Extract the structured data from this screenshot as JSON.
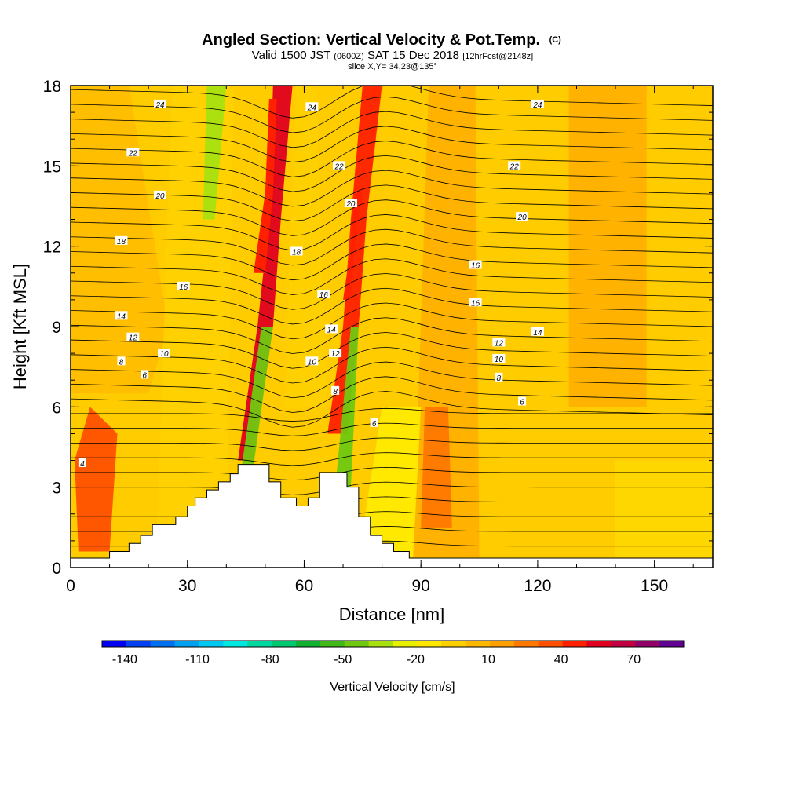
{
  "title": {
    "main": "Angled Section: Vertical Velocity & Pot.Temp.",
    "main_unit": "(C)",
    "valid_prefix": "Valid 1500 JST",
    "valid_zulu": "(0600Z)",
    "valid_date": "SAT 15 Dec 2018",
    "forecast": "[12hrFcst@2148z]",
    "slice": "slice X,Y= 34,23@135°"
  },
  "colorbar": {
    "label": "Vertical Velocity [cm/s]",
    "tick_labels": [
      "-140",
      "-110",
      "-80",
      "-50",
      "-20",
      "10",
      "40",
      "70"
    ],
    "tick_values": [
      -140,
      -110,
      -80,
      -50,
      -20,
      10,
      40,
      70
    ],
    "min": -150,
    "max": 90,
    "step": 10,
    "colors": [
      "#0000f0",
      "#0040f0",
      "#0070f0",
      "#00a0f0",
      "#00c8f0",
      "#00e8e0",
      "#00d8a0",
      "#00c870",
      "#10b030",
      "#40b818",
      "#70c810",
      "#a8e010",
      "#e8f000",
      "#ffe800",
      "#ffd000",
      "#ffb800",
      "#ffa000",
      "#ff7800",
      "#ff5000",
      "#ff2000",
      "#e00020",
      "#c00040",
      "#900068",
      "#600090"
    ]
  },
  "chart_data": {
    "type": "heatmap",
    "subtype": "vertical cross-section with contour overlay",
    "x": {
      "label": "Distance [nm]",
      "range": [
        0,
        165
      ],
      "ticks": [
        0,
        30,
        60,
        90,
        120,
        150
      ]
    },
    "y": {
      "label": "Height [Kft MSL]",
      "range": [
        0,
        18
      ],
      "ticks": [
        0,
        3,
        6,
        9,
        12,
        15,
        18
      ]
    },
    "filled_field": {
      "name": "Vertical Velocity",
      "units": "cm/s",
      "features": [
        {
          "kind": "updraft",
          "x_center": 52,
          "peak_height": 15,
          "approx_value": 50
        },
        {
          "kind": "updraft",
          "x_center": 73,
          "peak_height": 13,
          "approx_value": 45
        },
        {
          "kind": "updraft",
          "x_center": 6,
          "peak_height": 3.5,
          "approx_value": 30
        },
        {
          "kind": "downdraft",
          "x_center": 37,
          "peak_height": 17,
          "approx_value": -40
        },
        {
          "kind": "downdraft",
          "x_center": 47,
          "peak_height": 5,
          "approx_value": -45
        },
        {
          "kind": "downdraft",
          "x_center": 71,
          "peak_height": 4,
          "approx_value": -45
        },
        {
          "kind": "weak updraft",
          "x_center": 95,
          "peak_height": 3.5,
          "approx_value": 20
        }
      ]
    },
    "contours": {
      "name": "Potential Temperature",
      "units": "°C",
      "labeled_levels": [
        4,
        6,
        8,
        10,
        12,
        14,
        16,
        18,
        20,
        22,
        24
      ],
      "labels": [
        {
          "text": "24",
          "x": 23,
          "y": 17.3
        },
        {
          "text": "24",
          "x": 62,
          "y": 17.2
        },
        {
          "text": "24",
          "x": 120,
          "y": 17.3
        },
        {
          "text": "22",
          "x": 16,
          "y": 15.5
        },
        {
          "text": "22",
          "x": 69,
          "y": 15.0
        },
        {
          "text": "22",
          "x": 114,
          "y": 15.0
        },
        {
          "text": "20",
          "x": 23,
          "y": 13.9
        },
        {
          "text": "20",
          "x": 72,
          "y": 13.6
        },
        {
          "text": "20",
          "x": 116,
          "y": 13.1
        },
        {
          "text": "18",
          "x": 13,
          "y": 12.2
        },
        {
          "text": "18",
          "x": 58,
          "y": 11.8
        },
        {
          "text": "16",
          "x": 29,
          "y": 10.5
        },
        {
          "text": "16",
          "x": 65,
          "y": 10.2
        },
        {
          "text": "16",
          "x": 104,
          "y": 11.3
        },
        {
          "text": "16",
          "x": 104,
          "y": 9.9
        },
        {
          "text": "14",
          "x": 13,
          "y": 9.4
        },
        {
          "text": "14",
          "x": 67,
          "y": 8.9
        },
        {
          "text": "14",
          "x": 120,
          "y": 8.8
        },
        {
          "text": "12",
          "x": 16,
          "y": 8.6
        },
        {
          "text": "12",
          "x": 68,
          "y": 8.0
        },
        {
          "text": "12",
          "x": 110,
          "y": 8.4
        },
        {
          "text": "10",
          "x": 24,
          "y": 8.0
        },
        {
          "text": "10",
          "x": 62,
          "y": 7.7
        },
        {
          "text": "10",
          "x": 110,
          "y": 7.8
        },
        {
          "text": "8",
          "x": 13,
          "y": 7.7
        },
        {
          "text": "8",
          "x": 68,
          "y": 6.6
        },
        {
          "text": "8",
          "x": 110,
          "y": 7.1
        },
        {
          "text": "6",
          "x": 19,
          "y": 7.2
        },
        {
          "text": "6",
          "x": 78,
          "y": 5.4
        },
        {
          "text": "6",
          "x": 116,
          "y": 6.2
        },
        {
          "text": "4",
          "x": 3,
          "y": 3.9
        }
      ]
    },
    "terrain": [
      [
        0,
        0.35
      ],
      [
        10,
        0.35
      ],
      [
        10,
        0.6
      ],
      [
        15,
        0.6
      ],
      [
        15,
        0.9
      ],
      [
        18,
        0.9
      ],
      [
        18,
        1.2
      ],
      [
        21,
        1.2
      ],
      [
        21,
        1.6
      ],
      [
        27,
        1.6
      ],
      [
        27,
        1.9
      ],
      [
        30,
        1.9
      ],
      [
        30,
        2.3
      ],
      [
        32,
        2.3
      ],
      [
        32,
        2.6
      ],
      [
        35,
        2.6
      ],
      [
        35,
        2.9
      ],
      [
        38,
        2.9
      ],
      [
        38,
        3.2
      ],
      [
        41,
        3.2
      ],
      [
        41,
        3.5
      ],
      [
        43,
        3.5
      ],
      [
        43,
        3.85
      ],
      [
        51,
        3.85
      ],
      [
        51,
        3.2
      ],
      [
        54,
        3.2
      ],
      [
        54,
        2.6
      ],
      [
        58,
        2.6
      ],
      [
        58,
        2.3
      ],
      [
        61,
        2.3
      ],
      [
        61,
        2.6
      ],
      [
        64,
        2.6
      ],
      [
        64,
        3.55
      ],
      [
        71,
        3.55
      ],
      [
        71,
        3.0
      ],
      [
        74,
        3.0
      ],
      [
        74,
        1.9
      ],
      [
        77,
        1.9
      ],
      [
        77,
        1.2
      ],
      [
        80,
        1.2
      ],
      [
        80,
        0.9
      ],
      [
        83,
        0.9
      ],
      [
        83,
        0.6
      ],
      [
        87,
        0.6
      ],
      [
        87,
        0.35
      ],
      [
        165,
        0.35
      ]
    ]
  }
}
